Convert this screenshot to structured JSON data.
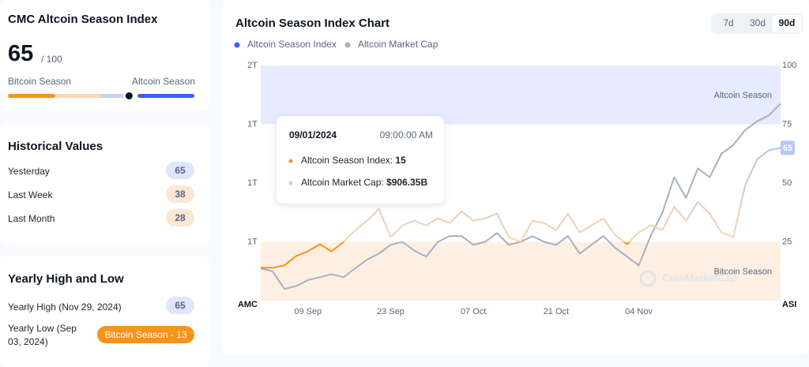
{
  "index_card": {
    "title": "CMC Altcoin Season Index",
    "value": 65,
    "max": {
      "value": 100,
      "label": "/ 100"
    },
    "left_label": "Bitcoin Season",
    "right_label": "Altcoin Season"
  },
  "historical": {
    "title": "Historical Values",
    "rows": [
      {
        "label": "Yesterday",
        "value": 65,
        "color": "#dfe5fd"
      },
      {
        "label": "Last Week",
        "value": 38,
        "color": "#fce7d3"
      },
      {
        "label": "Last Month",
        "value": 28,
        "color": "#fce7d3"
      }
    ]
  },
  "yearly": {
    "title": "Yearly High and Low",
    "rows": [
      {
        "label": "Yearly High (Nov 29, 2024)",
        "value": 65,
        "color": "#dfe5fd"
      },
      {
        "label": "Yearly Low (Sep 03, 2024)",
        "value": 13,
        "value_label": "Bitcoin Season - 13",
        "color": "#f7931a"
      }
    ]
  },
  "chart_data": {
    "type": "line",
    "title": "Altcoin Season Index Chart",
    "ranges": [
      "7d",
      "30d",
      "90d"
    ],
    "active_range": 2,
    "categories": [
      null,
      null,
      null,
      null,
      "09 Sep",
      null,
      null,
      null,
      null,
      null,
      null,
      "23 Sep",
      null,
      null,
      null,
      null,
      null,
      null,
      "07 Oct",
      null,
      null,
      null,
      null,
      null,
      null,
      "21 Oct",
      null,
      null,
      null,
      null,
      null,
      null,
      "04 Nov",
      null,
      null,
      null,
      null,
      null,
      null,
      null,
      null,
      null,
      null,
      null,
      null
    ],
    "series": [
      {
        "name": "Altcoin Season Index",
        "color": "#3861fb",
        "axis": "y2",
        "values": [
          14,
          14,
          15,
          19,
          21,
          24,
          21,
          25,
          30,
          34,
          39,
          27,
          32,
          34,
          32,
          35,
          33,
          38,
          34,
          35,
          37,
          27,
          25,
          34,
          33,
          30,
          37,
          29,
          32,
          35,
          28,
          24,
          29,
          32,
          30,
          40,
          34,
          42,
          37,
          29,
          27,
          49,
          60,
          64,
          65
        ]
      },
      {
        "name": "Altcoin Market Cap",
        "color": "#a6b0c3",
        "values": [
          0.91,
          0.9,
          0.84,
          0.85,
          0.87,
          0.88,
          0.89,
          0.88,
          0.91,
          0.94,
          0.96,
          0.99,
          1.0,
          0.97,
          0.95,
          1.0,
          1.02,
          1.02,
          0.99,
          1.0,
          1.03,
          0.99,
          1.0,
          1.02,
          1.0,
          0.99,
          1.02,
          0.96,
          0.99,
          1.02,
          0.98,
          0.95,
          0.92,
          1.02,
          1.1,
          1.22,
          1.15,
          1.25,
          1.22,
          1.3,
          1.33,
          1.38,
          1.41,
          1.43,
          1.47
        ]
      }
    ],
    "ylabel": "AMC",
    "y2label": "ASI",
    "ylim": [
      0.8,
      1.6
    ],
    "yticks": [
      {
        "value": 1.6,
        "label": "2T"
      },
      {
        "value": 1.4,
        "label": "1T"
      },
      {
        "value": 1.2,
        "label": "1T"
      },
      {
        "value": 1.0,
        "label": "1T"
      }
    ],
    "y2lim": [
      0,
      100
    ],
    "y2ticks": [
      25,
      50,
      75,
      100
    ],
    "grid": false,
    "bands": [
      {
        "label": "Altcoin Season",
        "from": 75,
        "to": 100,
        "color": "#e6ebfd"
      },
      {
        "label": "Bitcoin Season",
        "from": 0,
        "to": 25,
        "color": "#fdf0e3"
      }
    ],
    "watermark": "CoinMarketCap",
    "tooltip": {
      "date": "09/01/2024",
      "time": "09:00:00 AM",
      "rows": [
        {
          "label": "Altcoin Season Index:",
          "value": 15,
          "color": "#f7931a"
        },
        {
          "label": "Altcoin Market Cap:",
          "value": 0.90635,
          "value_label": "$906.35B",
          "color": "#cfd5df"
        }
      ]
    }
  }
}
